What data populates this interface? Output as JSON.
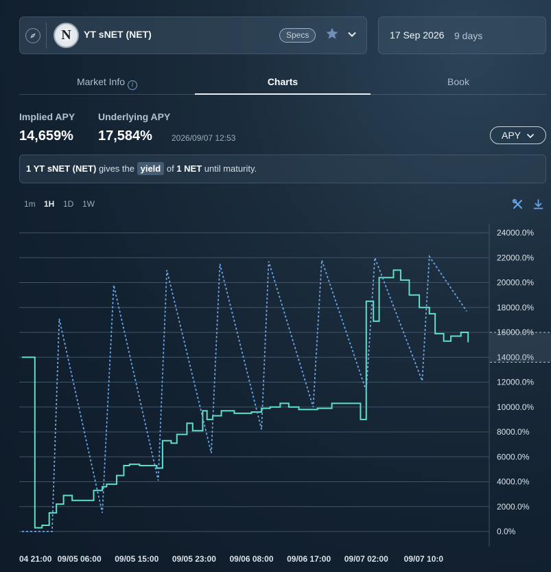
{
  "market": {
    "name": "YT sNET (NET)",
    "logo_letter": "N",
    "specs_label": "Specs"
  },
  "maturity": {
    "date": "17 Sep 2026",
    "days": "9 days"
  },
  "tabs": [
    {
      "label": "Market Info",
      "active": false
    },
    {
      "label": "Charts",
      "active": true
    },
    {
      "label": "Book",
      "active": false
    }
  ],
  "stats": {
    "implied_label": "Implied APY",
    "implied_value": "14,659%",
    "underlying_label": "Underlying APY",
    "underlying_value": "17,584%",
    "timestamp": "2026/09/07 12:53",
    "metric_select": "APY"
  },
  "description": {
    "prefix": "1 YT sNET (NET)",
    "mid1": " gives the ",
    "highlight": "yield",
    "mid2": " of ",
    "asset": "1 NET",
    "suffix": " until maturity."
  },
  "timeframes": [
    "1m",
    "1H",
    "1D",
    "1W"
  ],
  "active_timeframe": "1H",
  "colors": {
    "implied_line": "#5fe0c8",
    "underlying_line": "#6aa6e8",
    "grid": "#3f5568",
    "axis_text": "#dbe3ea"
  },
  "chart_data": {
    "type": "line",
    "y_tick_labels": [
      "0.0%",
      "2000.0%",
      "4000.0%",
      "6000.0%",
      "8000.0%",
      "10000.0%",
      "12000.0%",
      "14000.0%",
      "16000.0%",
      "18000.0%",
      "20000.0%",
      "22000.0%",
      "24000.0%"
    ],
    "ylim": [
      0,
      24000
    ],
    "x_tick_labels": [
      "04 21:00",
      "09/05 06:00",
      "09/05 15:00",
      "09/05 23:00",
      "09/06 08:00",
      "09/06 17:00",
      "09/07 02:00",
      "09/07 10:0"
    ],
    "xlim": [
      0,
      16
    ],
    "x_tick_positions": [
      0,
      2,
      4,
      6,
      8,
      10,
      12,
      14
    ],
    "grid": true,
    "series": [
      {
        "style": "step",
        "points": [
          [
            0,
            14000
          ],
          [
            0.43,
            14000
          ],
          [
            0.45,
            300
          ],
          [
            0.7,
            500
          ],
          [
            0.95,
            1500
          ],
          [
            1.2,
            2200
          ],
          [
            1.45,
            2900
          ],
          [
            1.75,
            2500
          ],
          [
            2.5,
            3300
          ],
          [
            2.8,
            3600
          ],
          [
            2.95,
            3800
          ],
          [
            3.3,
            4500
          ],
          [
            3.55,
            5300
          ],
          [
            3.75,
            5400
          ],
          [
            4.1,
            5300
          ],
          [
            4.7,
            5100
          ],
          [
            4.9,
            7300
          ],
          [
            5.2,
            7100
          ],
          [
            5.4,
            7800
          ],
          [
            5.75,
            8700
          ],
          [
            5.95,
            8100
          ],
          [
            6.3,
            9700
          ],
          [
            6.45,
            9000
          ],
          [
            6.65,
            9300
          ],
          [
            6.95,
            9700
          ],
          [
            7.4,
            9500
          ],
          [
            7.55,
            9500
          ],
          [
            8.0,
            9600
          ],
          [
            8.35,
            9900
          ],
          [
            8.65,
            10000
          ],
          [
            9.0,
            10300
          ],
          [
            9.3,
            10000
          ],
          [
            9.65,
            9800
          ],
          [
            10.3,
            9900
          ],
          [
            10.8,
            10300
          ],
          [
            11.8,
            9000
          ],
          [
            12.0,
            18500
          ],
          [
            12.25,
            16900
          ],
          [
            12.45,
            20400
          ],
          [
            12.95,
            21000
          ],
          [
            13.2,
            20200
          ],
          [
            13.5,
            19000
          ],
          [
            13.85,
            18000
          ],
          [
            14.2,
            17500
          ],
          [
            14.4,
            15900
          ],
          [
            14.7,
            15300
          ],
          [
            14.95,
            15700
          ],
          [
            15.3,
            16000
          ],
          [
            15.55,
            15200
          ]
        ]
      },
      {
        "style": "dashed",
        "points": [
          [
            0,
            0
          ],
          [
            1.05,
            0
          ],
          [
            1.3,
            17100
          ],
          [
            2.8,
            1500
          ],
          [
            3.2,
            19800
          ],
          [
            4.75,
            4100
          ],
          [
            5.05,
            21000
          ],
          [
            6.6,
            6300
          ],
          [
            6.9,
            21500
          ],
          [
            8.35,
            8200
          ],
          [
            8.6,
            21700
          ],
          [
            10.15,
            10000
          ],
          [
            10.45,
            21800
          ],
          [
            12.0,
            11300
          ],
          [
            12.3,
            22000
          ],
          [
            13.95,
            12100
          ],
          [
            14.2,
            22100
          ],
          [
            15.5,
            17700
          ]
        ]
      }
    ]
  }
}
